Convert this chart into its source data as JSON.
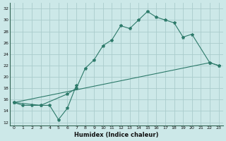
{
  "xlabel": "Humidex (Indice chaleur)",
  "bg_color": "#cce8e8",
  "grid_color": "#aacccc",
  "line_color": "#2d7a6a",
  "xlim": [
    -0.5,
    23.5
  ],
  "ylim": [
    11.5,
    33
  ],
  "xticks": [
    0,
    1,
    2,
    3,
    4,
    5,
    6,
    7,
    8,
    9,
    10,
    11,
    12,
    13,
    14,
    15,
    16,
    17,
    18,
    19,
    20,
    21,
    22,
    23
  ],
  "yticks": [
    12,
    14,
    16,
    18,
    20,
    22,
    24,
    26,
    28,
    30,
    32
  ],
  "line1_x": [
    0,
    1,
    2,
    3,
    4,
    5,
    6,
    7
  ],
  "line1_y": [
    15.5,
    15.0,
    15.0,
    15.0,
    15.0,
    12.5,
    14.5,
    18.5
  ],
  "line2_x": [
    0,
    3,
    6,
    7,
    8,
    9,
    10,
    11,
    12,
    13,
    14,
    15,
    16,
    17,
    18,
    19,
    20,
    22,
    23
  ],
  "line2_y": [
    15.5,
    15.0,
    17.0,
    18.0,
    21.5,
    23.0,
    25.5,
    26.5,
    29.0,
    28.5,
    30.0,
    31.5,
    30.5,
    30.0,
    29.5,
    27.0,
    27.5,
    22.5,
    22.0
  ],
  "line3_x": [
    0,
    22,
    23
  ],
  "line3_y": [
    15.5,
    22.5,
    22.0
  ]
}
